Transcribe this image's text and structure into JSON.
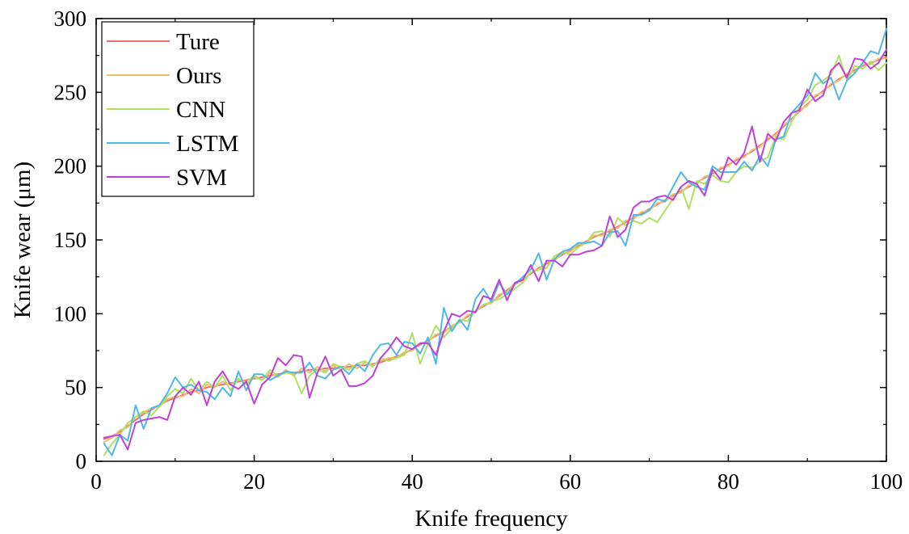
{
  "chart_data": {
    "type": "line",
    "title": "",
    "xlabel": "Knife frequency",
    "ylabel": "Knife wear (μm)",
    "xlim": [
      0,
      100
    ],
    "ylim": [
      0,
      300
    ],
    "xticks": [
      "0",
      "20",
      "40",
      "60",
      "80",
      "100"
    ],
    "yticks": [
      "0",
      "50",
      "100",
      "150",
      "200",
      "250",
      "300"
    ],
    "grid": false,
    "legend_position": "top-left",
    "x": [
      1,
      2,
      3,
      4,
      5,
      6,
      7,
      8,
      9,
      10,
      11,
      12,
      13,
      14,
      15,
      16,
      17,
      18,
      19,
      20,
      21,
      22,
      23,
      24,
      25,
      26,
      27,
      28,
      29,
      30,
      31,
      32,
      33,
      34,
      35,
      36,
      37,
      38,
      39,
      40,
      41,
      42,
      43,
      44,
      45,
      46,
      47,
      48,
      49,
      50,
      51,
      52,
      53,
      54,
      55,
      56,
      57,
      58,
      59,
      60,
      61,
      62,
      63,
      64,
      65,
      66,
      67,
      68,
      69,
      70,
      71,
      72,
      73,
      74,
      75,
      76,
      77,
      78,
      79,
      80,
      81,
      82,
      83,
      84,
      85,
      86,
      87,
      88,
      89,
      90,
      91,
      92,
      93,
      94,
      95,
      96,
      97,
      98,
      99,
      100
    ],
    "series": [
      {
        "name": "Ture",
        "color": "#f07070",
        "values": [
          15,
          17,
          20,
          24,
          28,
          32,
          35,
          38,
          41,
          43,
          45,
          47,
          48,
          50,
          51,
          52,
          53,
          54,
          55,
          56,
          57,
          58,
          59,
          60,
          60,
          61,
          62,
          62,
          63,
          63,
          64,
          64,
          65,
          65,
          66,
          67,
          69,
          71,
          73,
          76,
          79,
          82,
          85,
          88,
          91,
          95,
          98,
          102,
          105,
          108,
          112,
          116,
          120,
          123,
          127,
          131,
          134,
          137,
          140,
          143,
          146,
          149,
          152,
          154,
          156,
          159,
          162,
          165,
          168,
          171,
          174,
          177,
          180,
          183,
          186,
          189,
          192,
          195,
          198,
          201,
          204,
          207,
          210,
          214,
          218,
          222,
          227,
          232,
          237,
          242,
          247,
          251,
          255,
          259,
          262,
          265,
          268,
          270,
          272,
          274
        ]
      },
      {
        "name": "Ours",
        "color": "#e8c070",
        "values": [
          13,
          16,
          21,
          23,
          30,
          33,
          36,
          37,
          42,
          44,
          44,
          49,
          46,
          52,
          50,
          54,
          52,
          55,
          54,
          58,
          55,
          60,
          57,
          62,
          58,
          63,
          60,
          64,
          61,
          65,
          62,
          66,
          63,
          67,
          65,
          68,
          70,
          70,
          74,
          75,
          80,
          81,
          86,
          87,
          92,
          94,
          99,
          101,
          106,
          107,
          113,
          115,
          121,
          122,
          128,
          130,
          135,
          136,
          141,
          142,
          147,
          148,
          153,
          153,
          157,
          158,
          163,
          164,
          169,
          170,
          175,
          176,
          181,
          182,
          187,
          188,
          193,
          194,
          199,
          200,
          205,
          206,
          211,
          213,
          219,
          221,
          228,
          231,
          238,
          241,
          248,
          250,
          256,
          258,
          263,
          264,
          269,
          269,
          273,
          273
        ]
      },
      {
        "name": "CNN",
        "color": "#b0e060",
        "values": [
          4,
          12,
          18,
          26,
          30,
          34,
          31,
          37,
          44,
          49,
          46,
          56,
          48,
          54,
          50,
          58,
          48,
          56,
          52,
          57,
          55,
          62,
          58,
          60,
          59,
          46,
          58,
          62,
          60,
          66,
          64,
          62,
          66,
          68,
          64,
          70,
          68,
          70,
          72,
          87,
          66,
          80,
          92,
          84,
          90,
          96,
          95,
          102,
          106,
          108,
          110,
          113,
          117,
          121,
          128,
          130,
          131,
          139,
          142,
          140,
          145,
          148,
          155,
          156,
          152,
          165,
          160,
          163,
          161,
          165,
          162,
          170,
          178,
          186,
          171,
          190,
          188,
          194,
          190,
          189,
          196,
          200,
          199,
          203,
          206,
          220,
          218,
          230,
          240,
          245,
          255,
          258,
          262,
          275,
          258,
          268,
          266,
          271,
          265,
          270
        ]
      },
      {
        "name": "LSTM",
        "color": "#50b8e8",
        "values": [
          12,
          4,
          18,
          14,
          38,
          22,
          36,
          38,
          46,
          57,
          50,
          52,
          48,
          47,
          42,
          50,
          44,
          61,
          48,
          59,
          59,
          55,
          58,
          61,
          60,
          60,
          67,
          58,
          56,
          62,
          64,
          59,
          66,
          61,
          72,
          79,
          80,
          72,
          81,
          80,
          73,
          84,
          66,
          104,
          88,
          96,
          89,
          110,
          117,
          108,
          121,
          113,
          120,
          125,
          130,
          141,
          123,
          137,
          142,
          144,
          148,
          148,
          149,
          146,
          155,
          156,
          146,
          167,
          167,
          170,
          178,
          176,
          186,
          196,
          189,
          186,
          184,
          200,
          196,
          196,
          196,
          203,
          197,
          207,
          200,
          218,
          220,
          236,
          242,
          248,
          263,
          256,
          260,
          245,
          258,
          263,
          270,
          278,
          276,
          293
        ]
      },
      {
        "name": "SVM",
        "color": "#c040d8",
        "values": [
          16,
          17,
          18,
          8,
          26,
          28,
          29,
          30,
          28,
          44,
          50,
          45,
          54,
          38,
          54,
          61,
          52,
          49,
          54,
          39,
          52,
          57,
          70,
          65,
          72,
          71,
          43,
          60,
          71,
          58,
          62,
          51,
          51,
          53,
          58,
          70,
          76,
          84,
          78,
          76,
          80,
          80,
          72,
          88,
          100,
          98,
          102,
          101,
          112,
          110,
          123,
          109,
          121,
          123,
          133,
          122,
          136,
          136,
          132,
          140,
          140,
          142,
          143,
          146,
          166,
          152,
          157,
          172,
          176,
          176,
          179,
          180,
          177,
          186,
          190,
          188,
          180,
          198,
          191,
          206,
          201,
          209,
          227,
          203,
          222,
          217,
          230,
          236,
          238,
          252,
          244,
          248,
          265,
          270,
          260,
          273,
          272,
          266,
          270,
          279
        ]
      }
    ]
  }
}
